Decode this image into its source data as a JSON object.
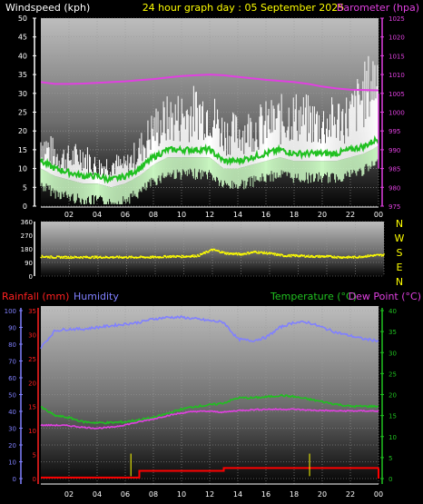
{
  "header": {
    "left_title": "Windspeed (kph)",
    "center_title": "24 hour graph day : 05 September 2025",
    "right_title": "Barometer (hpa)"
  },
  "colors": {
    "background": "#000000",
    "wind_gust": "#ffffff",
    "wind_avg": "#c8f5c0",
    "wind_direction": "#ffff00",
    "barometer": "#e040e0",
    "rain": "#ff0000",
    "humidity": "#8080ff",
    "temperature": "#20c020",
    "dewpoint": "#e040e0",
    "panel_top": "#bfbfbf",
    "panel_bottom": "#000000"
  },
  "direction_labels": [
    "N",
    "W",
    "S",
    "E",
    "N"
  ],
  "time_ticks": [
    "02",
    "04",
    "06",
    "08",
    "10",
    "12",
    "14",
    "16",
    "18",
    "20",
    "22",
    "00"
  ],
  "bottom_header": {
    "rainfall": "Rainfall (mm)",
    "humidity": "Humidity",
    "temperature": "Temperature (°C)",
    "dewpoint": "Dew Point (°C)"
  },
  "chart_data": [
    {
      "type": "line",
      "panel": "wind_barometer",
      "x": [
        0,
        1,
        2,
        3,
        4,
        5,
        6,
        7,
        8,
        9,
        10,
        11,
        12,
        13,
        14,
        15,
        16,
        17,
        18,
        19,
        20,
        21,
        22,
        23,
        24
      ],
      "series": [
        {
          "name": "Windspeed (kph)",
          "axis": "left",
          "color": "#ffffff",
          "values": [
            15,
            12,
            11,
            12,
            9,
            10,
            9,
            13,
            18,
            20,
            21,
            22,
            22,
            17,
            17,
            18,
            19,
            20,
            21,
            20,
            19,
            20,
            21,
            26,
            31
          ]
        },
        {
          "name": "Windspeed (kph)",
          "axis": "left",
          "color": "#c8f5c0",
          "values": [
            10,
            8,
            7,
            6,
            6,
            5,
            6,
            8,
            11,
            13,
            13,
            13,
            13,
            10,
            10,
            11,
            12,
            13,
            12,
            12,
            12,
            12,
            13,
            14,
            16
          ]
        },
        {
          "name": "Barometer (hpa)",
          "axis": "right",
          "color": "#e040e0",
          "values": [
            1008,
            1007.5,
            1007.5,
            1007.6,
            1007.8,
            1008,
            1008.2,
            1008.5,
            1008.8,
            1009.2,
            1009.6,
            1009.8,
            1010,
            1009.8,
            1009.4,
            1009,
            1008.6,
            1008.3,
            1008,
            1007.5,
            1006.8,
            1006.3,
            1006,
            1005.9,
            1005.8
          ]
        }
      ],
      "yticks_left": [
        0,
        5,
        10,
        15,
        20,
        25,
        30,
        35,
        40,
        45,
        50
      ],
      "ylim_left": [
        0,
        50
      ],
      "yticks_right": [
        975,
        980,
        985,
        990,
        995,
        1000,
        1005,
        1010,
        1015,
        1020,
        1025
      ],
      "ylim_right": [
        975,
        1025
      ],
      "xlabel": "",
      "ylabel": "Windspeed (kph)",
      "y2label": "Barometer (hpa)",
      "grid": true
    },
    {
      "type": "scatter",
      "panel": "wind_direction",
      "x": [
        0,
        1,
        2,
        3,
        4,
        5,
        6,
        7,
        8,
        9,
        10,
        11,
        12,
        13,
        14,
        15,
        16,
        17,
        18,
        19,
        20,
        21,
        22,
        23,
        24
      ],
      "series": [
        {
          "name": "",
          "color": "#ffff00",
          "values": [
            130,
            125,
            125,
            125,
            125,
            125,
            125,
            125,
            125,
            130,
            130,
            135,
            175,
            150,
            145,
            160,
            150,
            135,
            135,
            130,
            130,
            125,
            125,
            135,
            140
          ]
        }
      ],
      "yticks": [
        0,
        90,
        180,
        270,
        360
      ],
      "ylim": [
        0,
        360
      ],
      "grid": true
    },
    {
      "type": "line",
      "panel": "rain_humidity_temperature",
      "x": [
        0,
        1,
        2,
        3,
        4,
        5,
        6,
        7,
        8,
        9,
        10,
        11,
        12,
        13,
        14,
        15,
        16,
        17,
        18,
        19,
        20,
        21,
        22,
        23,
        24
      ],
      "series": [
        {
          "name": "Rainfall (mm)",
          "axis": "rain",
          "color": "#ff0000",
          "values": [
            0.2,
            0.2,
            0.2,
            0.2,
            0.2,
            0.2,
            0.2,
            1.6,
            1.6,
            1.6,
            1.6,
            1.6,
            1.6,
            2.2,
            2.2,
            2.2,
            2.2,
            2.2,
            2.2,
            2.2,
            2.2,
            2.2,
            2.2,
            2.2,
            2.2
          ]
        },
        {
          "name": "Humidity",
          "axis": "humidity",
          "color": "#8080ff",
          "values": [
            78,
            88,
            89,
            89,
            90,
            91,
            92,
            93,
            95,
            96,
            96,
            95,
            94,
            93,
            83,
            82,
            84,
            90,
            93,
            93,
            90,
            87,
            85,
            83,
            82
          ]
        },
        {
          "name": "Temperature (°C)",
          "axis": "temperature",
          "color": "#20c020",
          "values": [
            17,
            15,
            14.5,
            13.5,
            13.3,
            13.3,
            13.5,
            14,
            14.5,
            15.5,
            16.5,
            17.2,
            17.5,
            18,
            19.2,
            19.2,
            19.4,
            19.8,
            19.5,
            18.9,
            18.3,
            17.7,
            17.2,
            17.2,
            17.2
          ]
        },
        {
          "name": "Dew Point (°C)",
          "axis": "temperature",
          "color": "#e040e0",
          "values": [
            12.7,
            12.7,
            12.6,
            12.2,
            12,
            12.2,
            12.8,
            13.5,
            14.2,
            15,
            15.6,
            16,
            16,
            15.8,
            16.2,
            16.4,
            16.5,
            16.5,
            16.5,
            16.3,
            16.2,
            16.1,
            16.1,
            16.1,
            16.1
          ]
        }
      ],
      "yticks_humidity": [
        0,
        10,
        20,
        30,
        40,
        50,
        60,
        70,
        80,
        90,
        100
      ],
      "ylim_humidity": [
        0,
        100
      ],
      "yticks_rain": [
        0,
        5,
        10,
        15,
        20,
        25,
        30,
        35
      ],
      "ylim_rain": [
        0,
        35
      ],
      "yticks_temperature": [
        0,
        5,
        10,
        15,
        20,
        25,
        30,
        35,
        40
      ],
      "ylim_temperature": [
        0,
        40
      ],
      "grid": true
    }
  ]
}
